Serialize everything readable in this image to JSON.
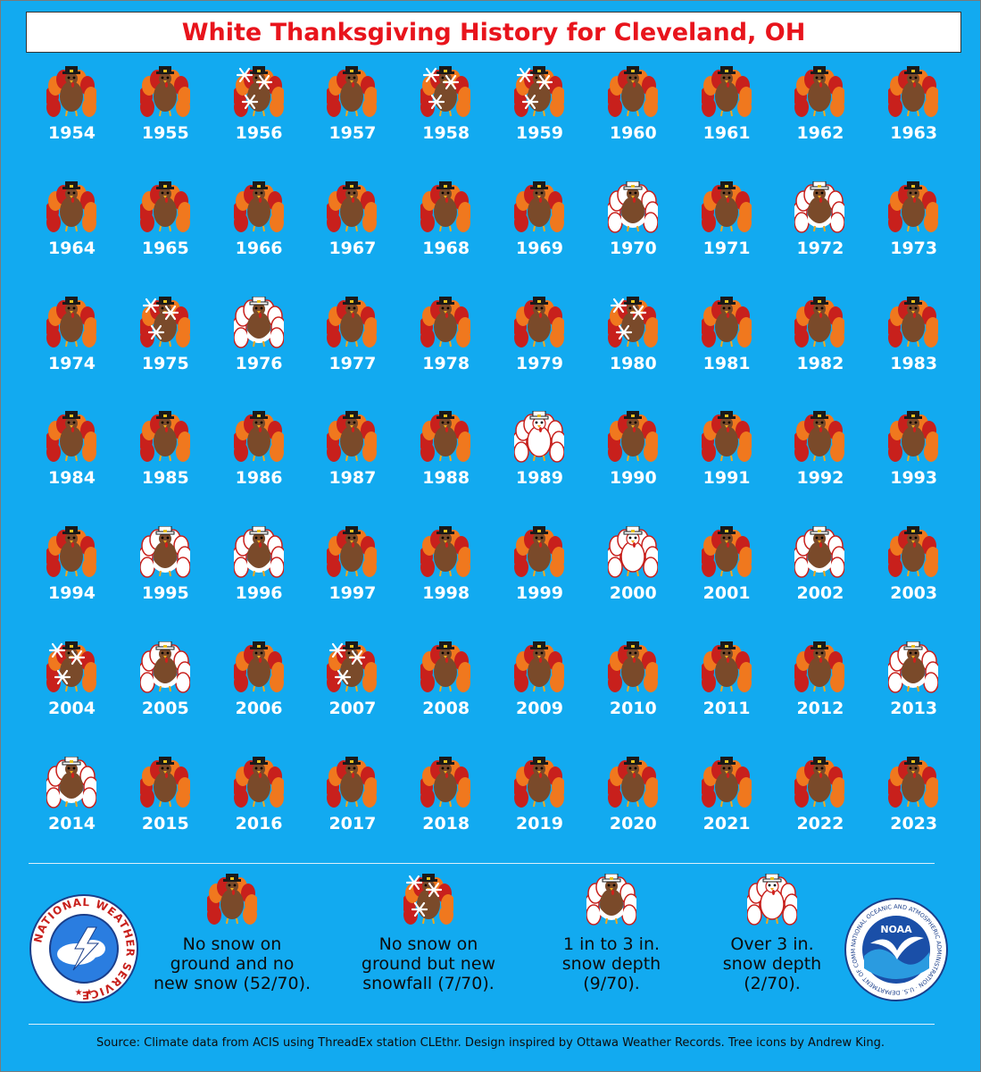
{
  "title": "White Thanksgiving History for Cleveland, OH",
  "colors": {
    "background": "#12aaf0",
    "title": "#e8141c",
    "turkey_body": "#7a4a2a",
    "feather_red": "#c8201c",
    "feather_orange": "#f0781e",
    "snow": "#ffffff"
  },
  "years": [
    {
      "year": "1954",
      "type": "no_snow"
    },
    {
      "year": "1955",
      "type": "no_snow"
    },
    {
      "year": "1956",
      "type": "new_snow"
    },
    {
      "year": "1957",
      "type": "no_snow"
    },
    {
      "year": "1958",
      "type": "new_snow"
    },
    {
      "year": "1959",
      "type": "new_snow"
    },
    {
      "year": "1960",
      "type": "no_snow"
    },
    {
      "year": "1961",
      "type": "no_snow"
    },
    {
      "year": "1962",
      "type": "no_snow"
    },
    {
      "year": "1963",
      "type": "no_snow"
    },
    {
      "year": "1964",
      "type": "no_snow"
    },
    {
      "year": "1965",
      "type": "no_snow"
    },
    {
      "year": "1966",
      "type": "no_snow"
    },
    {
      "year": "1967",
      "type": "no_snow"
    },
    {
      "year": "1968",
      "type": "no_snow"
    },
    {
      "year": "1969",
      "type": "no_snow"
    },
    {
      "year": "1970",
      "type": "depth_1_3"
    },
    {
      "year": "1971",
      "type": "no_snow"
    },
    {
      "year": "1972",
      "type": "depth_1_3"
    },
    {
      "year": "1973",
      "type": "no_snow"
    },
    {
      "year": "1974",
      "type": "no_snow"
    },
    {
      "year": "1975",
      "type": "new_snow"
    },
    {
      "year": "1976",
      "type": "depth_1_3"
    },
    {
      "year": "1977",
      "type": "no_snow"
    },
    {
      "year": "1978",
      "type": "no_snow"
    },
    {
      "year": "1979",
      "type": "no_snow"
    },
    {
      "year": "1980",
      "type": "new_snow"
    },
    {
      "year": "1981",
      "type": "no_snow"
    },
    {
      "year": "1982",
      "type": "no_snow"
    },
    {
      "year": "1983",
      "type": "no_snow"
    },
    {
      "year": "1984",
      "type": "no_snow"
    },
    {
      "year": "1985",
      "type": "no_snow"
    },
    {
      "year": "1986",
      "type": "no_snow"
    },
    {
      "year": "1987",
      "type": "no_snow"
    },
    {
      "year": "1988",
      "type": "no_snow"
    },
    {
      "year": "1989",
      "type": "depth_over_3"
    },
    {
      "year": "1990",
      "type": "no_snow"
    },
    {
      "year": "1991",
      "type": "no_snow"
    },
    {
      "year": "1992",
      "type": "no_snow"
    },
    {
      "year": "1993",
      "type": "no_snow"
    },
    {
      "year": "1994",
      "type": "no_snow"
    },
    {
      "year": "1995",
      "type": "depth_1_3"
    },
    {
      "year": "1996",
      "type": "depth_1_3"
    },
    {
      "year": "1997",
      "type": "no_snow"
    },
    {
      "year": "1998",
      "type": "no_snow"
    },
    {
      "year": "1999",
      "type": "no_snow"
    },
    {
      "year": "2000",
      "type": "depth_over_3"
    },
    {
      "year": "2001",
      "type": "no_snow"
    },
    {
      "year": "2002",
      "type": "depth_1_3"
    },
    {
      "year": "2003",
      "type": "no_snow"
    },
    {
      "year": "2004",
      "type": "new_snow"
    },
    {
      "year": "2005",
      "type": "depth_1_3"
    },
    {
      "year": "2006",
      "type": "no_snow"
    },
    {
      "year": "2007",
      "type": "new_snow"
    },
    {
      "year": "2008",
      "type": "no_snow"
    },
    {
      "year": "2009",
      "type": "no_snow"
    },
    {
      "year": "2010",
      "type": "no_snow"
    },
    {
      "year": "2011",
      "type": "no_snow"
    },
    {
      "year": "2012",
      "type": "no_snow"
    },
    {
      "year": "2013",
      "type": "depth_1_3"
    },
    {
      "year": "2014",
      "type": "depth_1_3"
    },
    {
      "year": "2015",
      "type": "no_snow"
    },
    {
      "year": "2016",
      "type": "no_snow"
    },
    {
      "year": "2017",
      "type": "no_snow"
    },
    {
      "year": "2018",
      "type": "no_snow"
    },
    {
      "year": "2019",
      "type": "no_snow"
    },
    {
      "year": "2020",
      "type": "no_snow"
    },
    {
      "year": "2021",
      "type": "no_snow"
    },
    {
      "year": "2022",
      "type": "no_snow"
    },
    {
      "year": "2023",
      "type": "no_snow"
    }
  ],
  "legend": [
    {
      "type": "no_snow",
      "label": "No snow on\nground and no\nnew snow (52/70)."
    },
    {
      "type": "new_snow",
      "label": "No snow on\nground but new\nsnowfall (7/70)."
    },
    {
      "type": "depth_1_3",
      "label": "1 in to 3 in.\nsnow depth\n(9/70)."
    },
    {
      "type": "depth_over_3",
      "label": "Over 3 in.\nsnow depth\n(2/70)."
    }
  ],
  "logos": {
    "nws_text": "NATIONAL WEATHER SERVICE",
    "noaa_text": "NOAA",
    "noaa_ring": "NATIONAL OCEANIC AND ATMOSPHERIC ADMINISTRATION · U.S. DEPARTMENT OF COMMERCE"
  },
  "source": "Source: Climate data from ACIS using ThreadEx station CLEthr. Design inspired by Ottawa Weather Records. Tree icons by Andrew King."
}
